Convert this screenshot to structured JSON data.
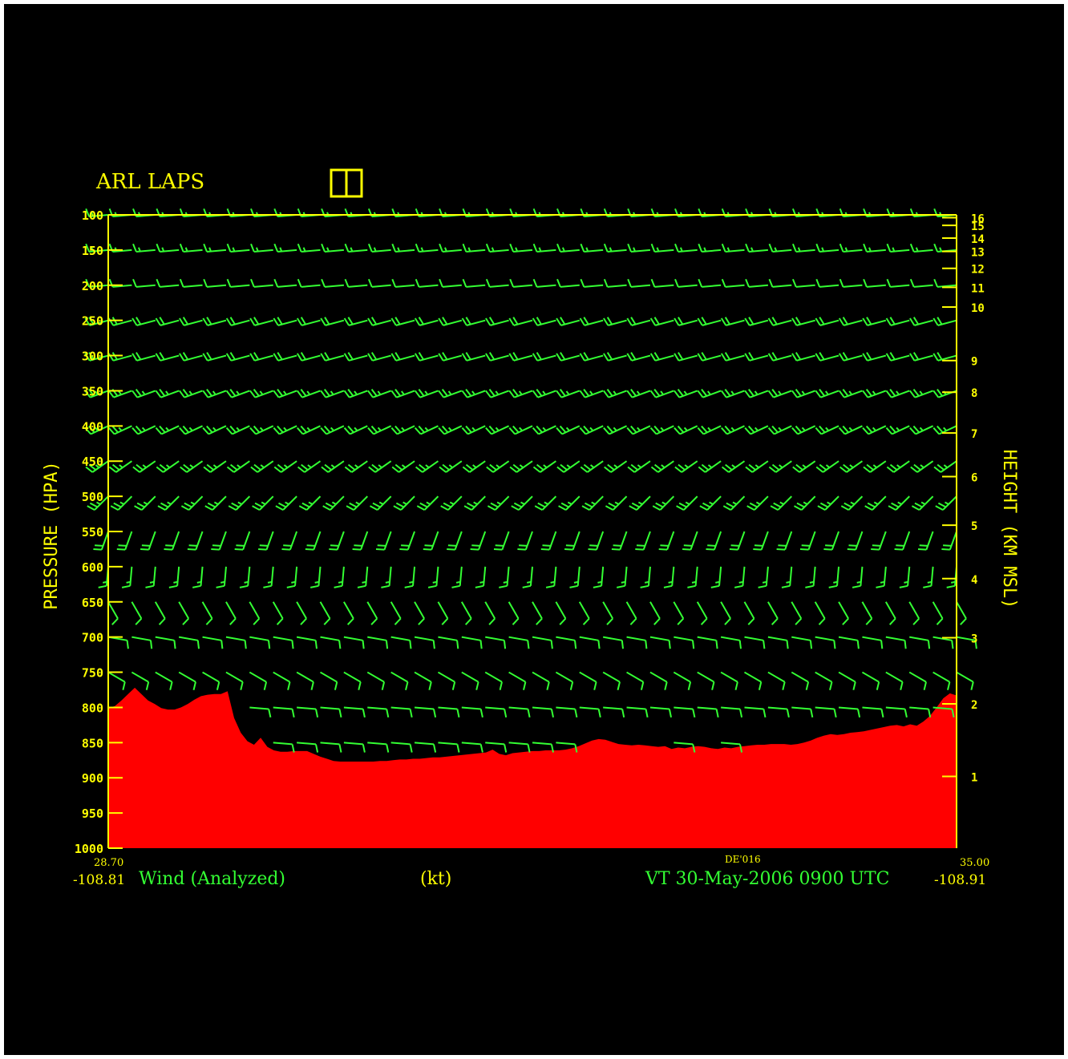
{
  "header": {
    "title": "ARL LAPS"
  },
  "footer": {
    "left_lat": "28.70",
    "left_lon": "-108.81",
    "field_label": "Wind (Analyzed)",
    "units": "(kt)",
    "center_station": "DE'016",
    "valid_time": "VT 30-May-2006 0900 UTC",
    "right_lat": "35.00",
    "right_lon": "-108.91"
  },
  "colors": {
    "background": "#000000",
    "axes": "#ffff00",
    "wind_barbs": "#33ff33",
    "terrain": "#ff0000"
  },
  "chart_data": {
    "type": "cross-section",
    "title": "ARL LAPS",
    "ylabel_left": "PRESSURE (HPA)",
    "ylabel_right": "HEIGHT (KM MSL)",
    "pressure_ticks": [
      "100",
      "150",
      "200",
      "250",
      "300",
      "350",
      "400",
      "450",
      "500",
      "550",
      "600",
      "650",
      "700",
      "750",
      "800",
      "850",
      "900",
      "950",
      "1000"
    ],
    "pressure_range": [
      100,
      1000
    ],
    "height_ticks": [
      {
        "p": 104,
        "label": "16"
      },
      {
        "p": 115,
        "label": "15"
      },
      {
        "p": 133,
        "label": "14"
      },
      {
        "p": 152,
        "label": "13"
      },
      {
        "p": 176,
        "label": "12"
      },
      {
        "p": 203,
        "label": "11"
      },
      {
        "p": 231,
        "label": "10"
      },
      {
        "p": 307,
        "label": "9"
      },
      {
        "p": 352,
        "label": "8"
      },
      {
        "p": 410,
        "label": "7"
      },
      {
        "p": 472,
        "label": "6"
      },
      {
        "p": 541,
        "label": "5"
      },
      {
        "p": 617,
        "label": "4"
      },
      {
        "p": 701,
        "label": "3"
      },
      {
        "p": 795,
        "label": "2"
      },
      {
        "p": 898,
        "label": "1"
      }
    ],
    "barb_levels": [
      100,
      150,
      200,
      250,
      300,
      350,
      400,
      450,
      500,
      550,
      600,
      650,
      700,
      750,
      800,
      850
    ],
    "barb_columns": 37,
    "wind_profile": [
      {
        "p": 100,
        "dir": 265,
        "spd": 15
      },
      {
        "p": 150,
        "dir": 265,
        "spd": 15
      },
      {
        "p": 200,
        "dir": 265,
        "spd": 10
      },
      {
        "p": 250,
        "dir": 255,
        "spd": 20
      },
      {
        "p": 300,
        "dir": 255,
        "spd": 20
      },
      {
        "p": 350,
        "dir": 250,
        "spd": 25
      },
      {
        "p": 400,
        "dir": 245,
        "spd": 25
      },
      {
        "p": 450,
        "dir": 235,
        "spd": 25
      },
      {
        "p": 500,
        "dir": 225,
        "spd": 25
      },
      {
        "p": 550,
        "dir": 200,
        "spd": 20
      },
      {
        "p": 600,
        "dir": 185,
        "spd": 15
      },
      {
        "p": 650,
        "dir": 150,
        "spd": 10
      },
      {
        "p": 700,
        "dir": 100,
        "spd": 10
      },
      {
        "p": 750,
        "dir": 120,
        "spd": 10
      },
      {
        "p": 800,
        "dir": 95,
        "spd": 10
      },
      {
        "p": 850,
        "dir": 95,
        "spd": 10
      }
    ],
    "terrain_surface_pressure": [
      801,
      798,
      790,
      781,
      772,
      781,
      790,
      795,
      801,
      803,
      803,
      800,
      795,
      789,
      784,
      782,
      781,
      781,
      777,
      815,
      836,
      848,
      853,
      843,
      856,
      861,
      863,
      863,
      862,
      862,
      862,
      866,
      870,
      873,
      876,
      877,
      877,
      877,
      877,
      877,
      877,
      876,
      876,
      875,
      874,
      874,
      873,
      873,
      872,
      871,
      871,
      870,
      869,
      868,
      867,
      866,
      865,
      864,
      860,
      866,
      868,
      865,
      864,
      863,
      862,
      862,
      861,
      861,
      861,
      860,
      858,
      855,
      851,
      847,
      845,
      846,
      849,
      852,
      853,
      854,
      853,
      854,
      855,
      856,
      855,
      859,
      857,
      858,
      856,
      855,
      856,
      858,
      859,
      857,
      858,
      856,
      855,
      854,
      853,
      853,
      852,
      852,
      852,
      853,
      852,
      850,
      847,
      843,
      840,
      838,
      839,
      838,
      836,
      835,
      834,
      832,
      830,
      828,
      826,
      825,
      827,
      824,
      826,
      820,
      812,
      800,
      787,
      780,
      783
    ]
  }
}
